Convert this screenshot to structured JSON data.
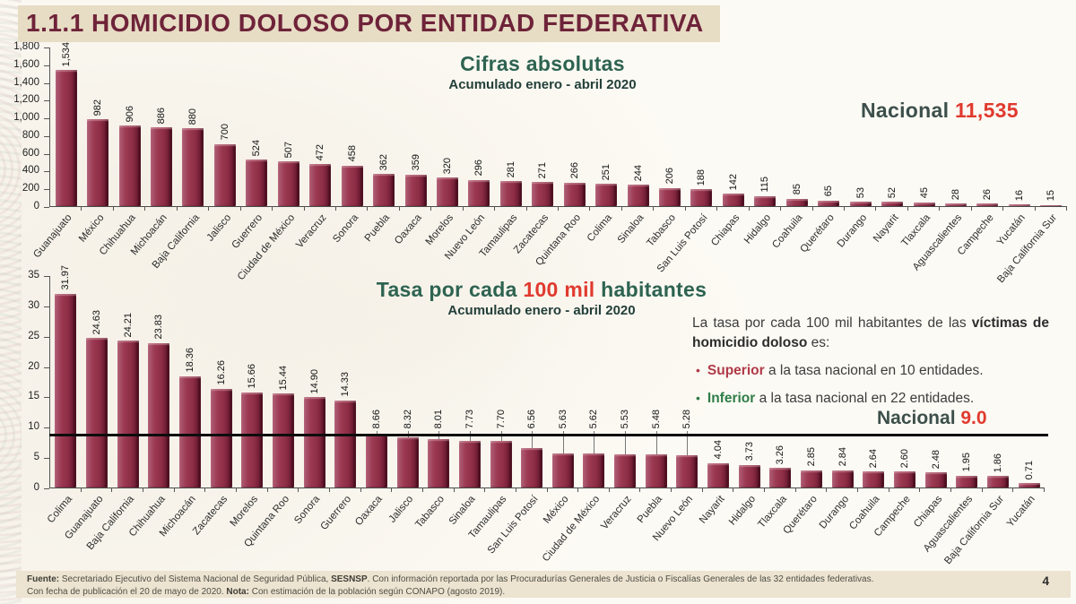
{
  "page": {
    "title": "1.1.1 HOMICIDIO DOLOSO POR ENTIDAD FEDERATIVA",
    "page_number": "4"
  },
  "colors": {
    "title_maroon": "#6e2339",
    "title_strip_bg": "#e7dcc4",
    "bar": "#8e2d46",
    "green": "#2d6351",
    "dark_slate": "#3c4f4b",
    "accent_red": "#e03a2f",
    "superior_red": "#b03a48",
    "inferior_green": "#2e7d46",
    "footer_bg": "#ece3d0"
  },
  "chart_data": [
    {
      "type": "bar",
      "title": "Cifras absolutas",
      "subtitle": "Acumulado enero - abril 2020",
      "national_label": "Nacional",
      "national_value": "11,535",
      "ylim": [
        0,
        1800
      ],
      "ytick_labels": [
        "1,800",
        "1,600",
        "1,400",
        "1,200",
        "1,000",
        "800",
        "600",
        "400",
        "200",
        "0"
      ],
      "grid": false,
      "categories": [
        "Guanajuato",
        "México",
        "Chihuahua",
        "Michoacán",
        "Baja California",
        "Jalisco",
        "Guerrero",
        "Ciudad de México",
        "Veracruz",
        "Sonora",
        "Puebla",
        "Oaxaca",
        "Morelos",
        "Nuevo León",
        "Tamaulipas",
        "Zacatecas",
        "Quintana Roo",
        "Colima",
        "Sinaloa",
        "Tabasco",
        "San Luis Potosí",
        "Chiapas",
        "Hidalgo",
        "Coahuila",
        "Querétaro",
        "Durango",
        "Nayarit",
        "Tlaxcala",
        "Aguascalientes",
        "Campeche",
        "Yucatán",
        "Baja California Sur"
      ],
      "values": [
        1534,
        982,
        906,
        886,
        880,
        700,
        524,
        507,
        472,
        458,
        362,
        359,
        320,
        296,
        281,
        271,
        266,
        251,
        244,
        206,
        188,
        142,
        115,
        85,
        65,
        53,
        52,
        45,
        28,
        26,
        16,
        15
      ],
      "value_labels": [
        "1,534",
        "982",
        "906",
        "886",
        "880",
        "700",
        "524",
        "507",
        "472",
        "458",
        "362",
        "359",
        "320",
        "296",
        "281",
        "271",
        "266",
        "251",
        "244",
        "206",
        "188",
        "142",
        "115",
        "85",
        "65",
        "53",
        "52",
        "45",
        "28",
        "26",
        "16",
        "15"
      ]
    },
    {
      "type": "bar",
      "title_prefix": "Tasa por cada ",
      "title_highlight": "100 mil",
      "title_suffix": " habitantes",
      "subtitle": "Acumulado enero - abril 2020",
      "national_label": "Nacional",
      "national_value": "9.0",
      "national_line_value": 9.0,
      "ylim": [
        0,
        35
      ],
      "ytick_labels": [
        "35",
        "30",
        "25",
        "20",
        "15",
        "10",
        "5",
        "0"
      ],
      "grid": false,
      "categories": [
        "Colima",
        "Guanajuato",
        "Baja California",
        "Chihuahua",
        "Michoacán",
        "Zacatecas",
        "Morelos",
        "Quintana Roo",
        "Sonora",
        "Guerrero",
        "Oaxaca",
        "Jalisco",
        "Tabasco",
        "Sinaloa",
        "Tamaulipas",
        "San Luis Potosí",
        "México",
        "Ciudad de México",
        "Veracruz",
        "Puebla",
        "Nuevo León",
        "Nayarit",
        "Hidalgo",
        "Tlaxcala",
        "Querétaro",
        "Durango",
        "Coahuila",
        "Campeche",
        "Chiapas",
        "Aguascalientes",
        "Baja California Sur",
        "Yucatán"
      ],
      "values": [
        31.97,
        24.63,
        24.21,
        23.83,
        18.36,
        16.26,
        15.66,
        15.44,
        14.9,
        14.33,
        8.66,
        8.32,
        8.01,
        7.73,
        7.7,
        6.56,
        5.63,
        5.62,
        5.53,
        5.48,
        5.28,
        4.04,
        3.73,
        3.26,
        2.85,
        2.84,
        2.64,
        2.6,
        2.48,
        1.95,
        1.86,
        0.71
      ],
      "value_labels": [
        "31.97",
        "24.63",
        "24.21",
        "23.83",
        "18.36",
        "16.26",
        "15.66",
        "15.44",
        "14.90",
        "14.33",
        "8.66",
        "8.32",
        "8.01",
        "7.73",
        "7.70",
        "6.56",
        "5.63",
        "5.62",
        "5.53",
        "5.48",
        "5.28",
        "4.04",
        "3.73",
        "3.26",
        "2.85",
        "2.84",
        "2.64",
        "2.60",
        "2.48",
        "1.95",
        "1.86",
        "0.71"
      ]
    }
  ],
  "annotation": {
    "intro_normal": "La tasa por cada 100 mil habitantes de las ",
    "intro_bold": "víctimas de homicidio doloso",
    "intro_tail": " es:",
    "bullets": [
      {
        "term": "Superior",
        "text": " a la tasa nacional en 10 entidades.",
        "color": "#b03a48"
      },
      {
        "term": "Inferior",
        "text": " a la tasa nacional en 22 entidades.",
        "color": "#2e7d46"
      }
    ]
  },
  "footer": {
    "lines": [
      [
        {
          "t": "Fuente: ",
          "b": 1
        },
        {
          "t": "Secretariado Ejecutivo del Sistema Nacional de Seguridad Pública, ",
          "b": 0
        },
        {
          "t": "SESNSP",
          "b": 1
        },
        {
          "t": ". Con información reportada por las Procuradurías Generales de Justicia o Fiscalías Generales de las 32 entidades federativas.",
          "b": 0
        }
      ],
      [
        {
          "t": "Con fecha de publicación el 20 de mayo de 2020. ",
          "b": 0
        },
        {
          "t": "Nota: ",
          "b": 1
        },
        {
          "t": "Con estimación de la población según CONAPO (agosto 2019).",
          "b": 0
        }
      ]
    ]
  }
}
